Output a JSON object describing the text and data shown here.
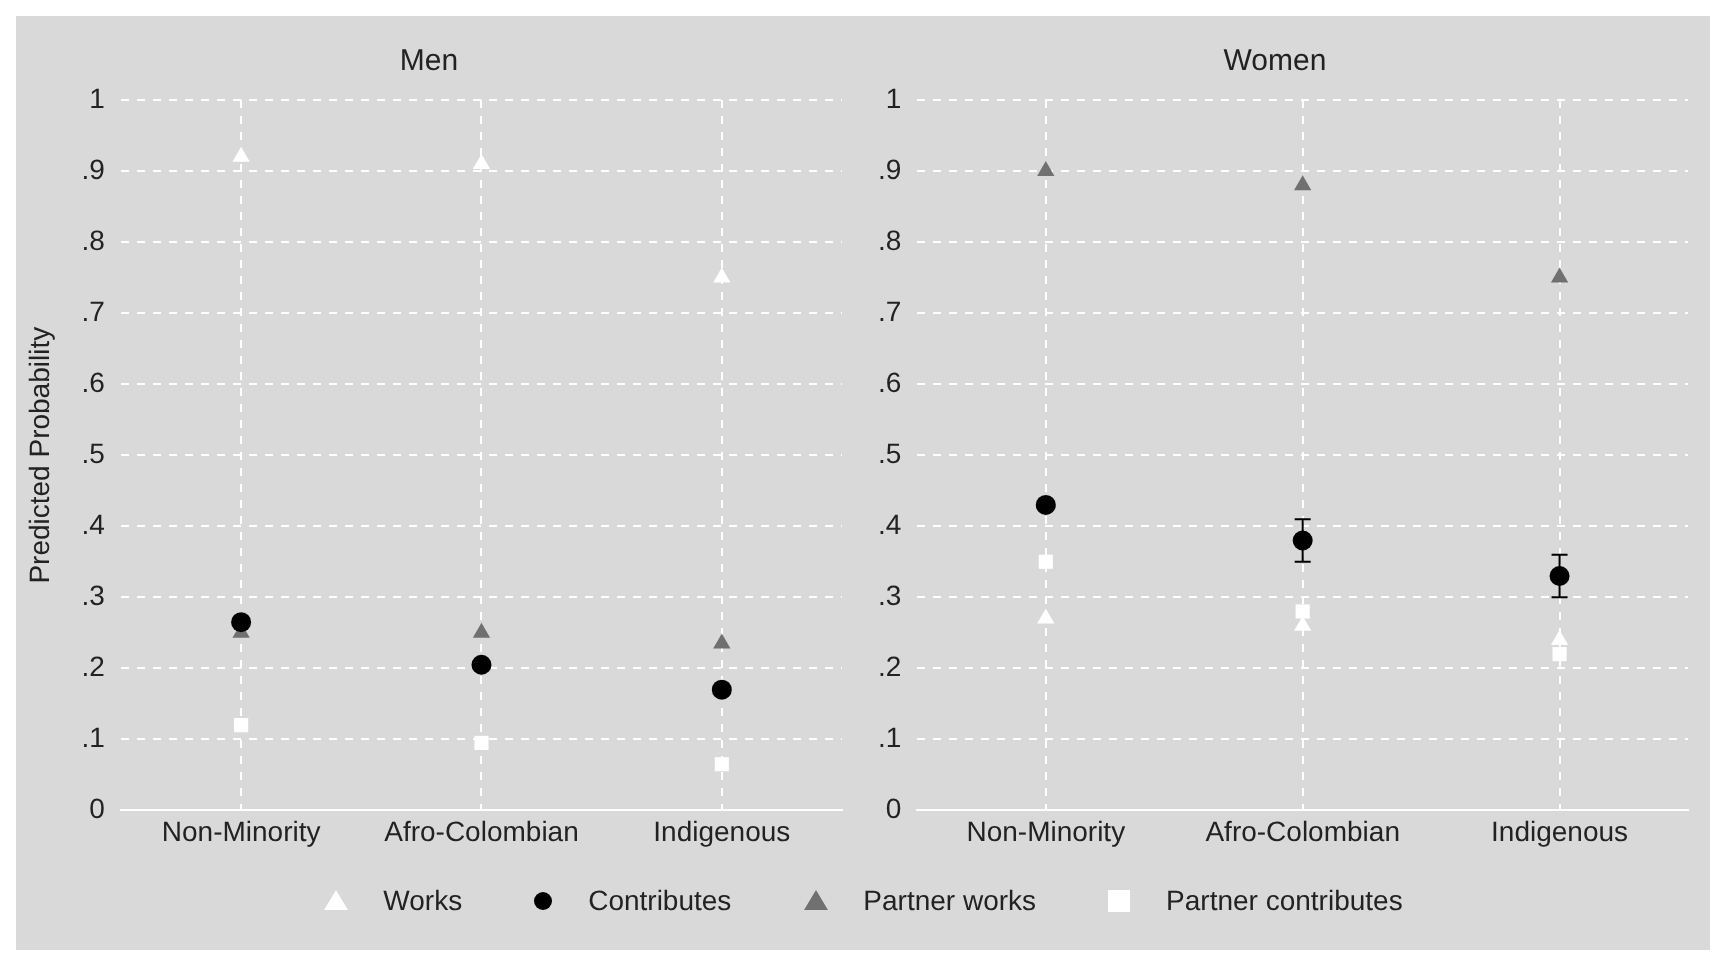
{
  "chart_data": [
    {
      "type": "scatter",
      "title": "Men",
      "ylabel": "Predicted Probability",
      "categories": [
        "Non-Minority",
        "Afro-Colombian",
        "Indigenous"
      ],
      "ylim": [
        0,
        1
      ],
      "yticks": [
        {
          "value": 0,
          "label": "0"
        },
        {
          "value": 0.1,
          "label": ".1"
        },
        {
          "value": 0.2,
          "label": ".2"
        },
        {
          "value": 0.3,
          "label": ".3"
        },
        {
          "value": 0.4,
          "label": ".4"
        },
        {
          "value": 0.5,
          "label": ".5"
        },
        {
          "value": 0.6,
          "label": ".6"
        },
        {
          "value": 0.7,
          "label": ".7"
        },
        {
          "value": 0.8,
          "label": ".8"
        },
        {
          "value": 0.9,
          "label": ".9"
        },
        {
          "value": 1,
          "label": "1"
        }
      ],
      "grid": true,
      "legend": "bottom",
      "series": [
        {
          "name": "Works",
          "color": "#ffffff",
          "marker": "triangle",
          "values": [
            0.92,
            0.91,
            0.75
          ]
        },
        {
          "name": "Contributes",
          "color": "#000000",
          "marker": "circle",
          "values": [
            0.265,
            0.205,
            0.17
          ]
        },
        {
          "name": "Partner works",
          "color": "#707070",
          "marker": "triangle",
          "values": [
            0.25,
            0.25,
            0.235
          ]
        },
        {
          "name": "Partner contributes",
          "color": "#ffffff",
          "marker": "square",
          "values": [
            0.12,
            0.095,
            0.065
          ]
        }
      ]
    },
    {
      "type": "scatter",
      "title": "Women",
      "categories": [
        "Non-Minority",
        "Afro-Colombian",
        "Indigenous"
      ],
      "ylim": [
        0,
        1
      ],
      "yticks": [
        {
          "value": 0,
          "label": "0"
        },
        {
          "value": 0.1,
          "label": ".1"
        },
        {
          "value": 0.2,
          "label": ".2"
        },
        {
          "value": 0.3,
          "label": ".3"
        },
        {
          "value": 0.4,
          "label": ".4"
        },
        {
          "value": 0.5,
          "label": ".5"
        },
        {
          "value": 0.6,
          "label": ".6"
        },
        {
          "value": 0.7,
          "label": ".7"
        },
        {
          "value": 0.8,
          "label": ".8"
        },
        {
          "value": 0.9,
          "label": ".9"
        },
        {
          "value": 1,
          "label": "1"
        }
      ],
      "grid": true,
      "legend": "bottom",
      "series": [
        {
          "name": "Works",
          "color": "#ffffff",
          "marker": "triangle",
          "values": [
            0.27,
            0.26,
            0.24
          ]
        },
        {
          "name": "Contributes",
          "color": "#000000",
          "marker": "circle",
          "values": [
            0.43,
            0.38,
            0.33
          ],
          "errors": [
            null,
            [
              0.35,
              0.41
            ],
            [
              0.3,
              0.36
            ]
          ]
        },
        {
          "name": "Partner works",
          "color": "#707070",
          "marker": "triangle",
          "values": [
            0.9,
            0.88,
            0.75
          ]
        },
        {
          "name": "Partner contributes",
          "color": "#ffffff",
          "marker": "square",
          "values": [
            0.35,
            0.28,
            0.22
          ]
        }
      ]
    }
  ]
}
